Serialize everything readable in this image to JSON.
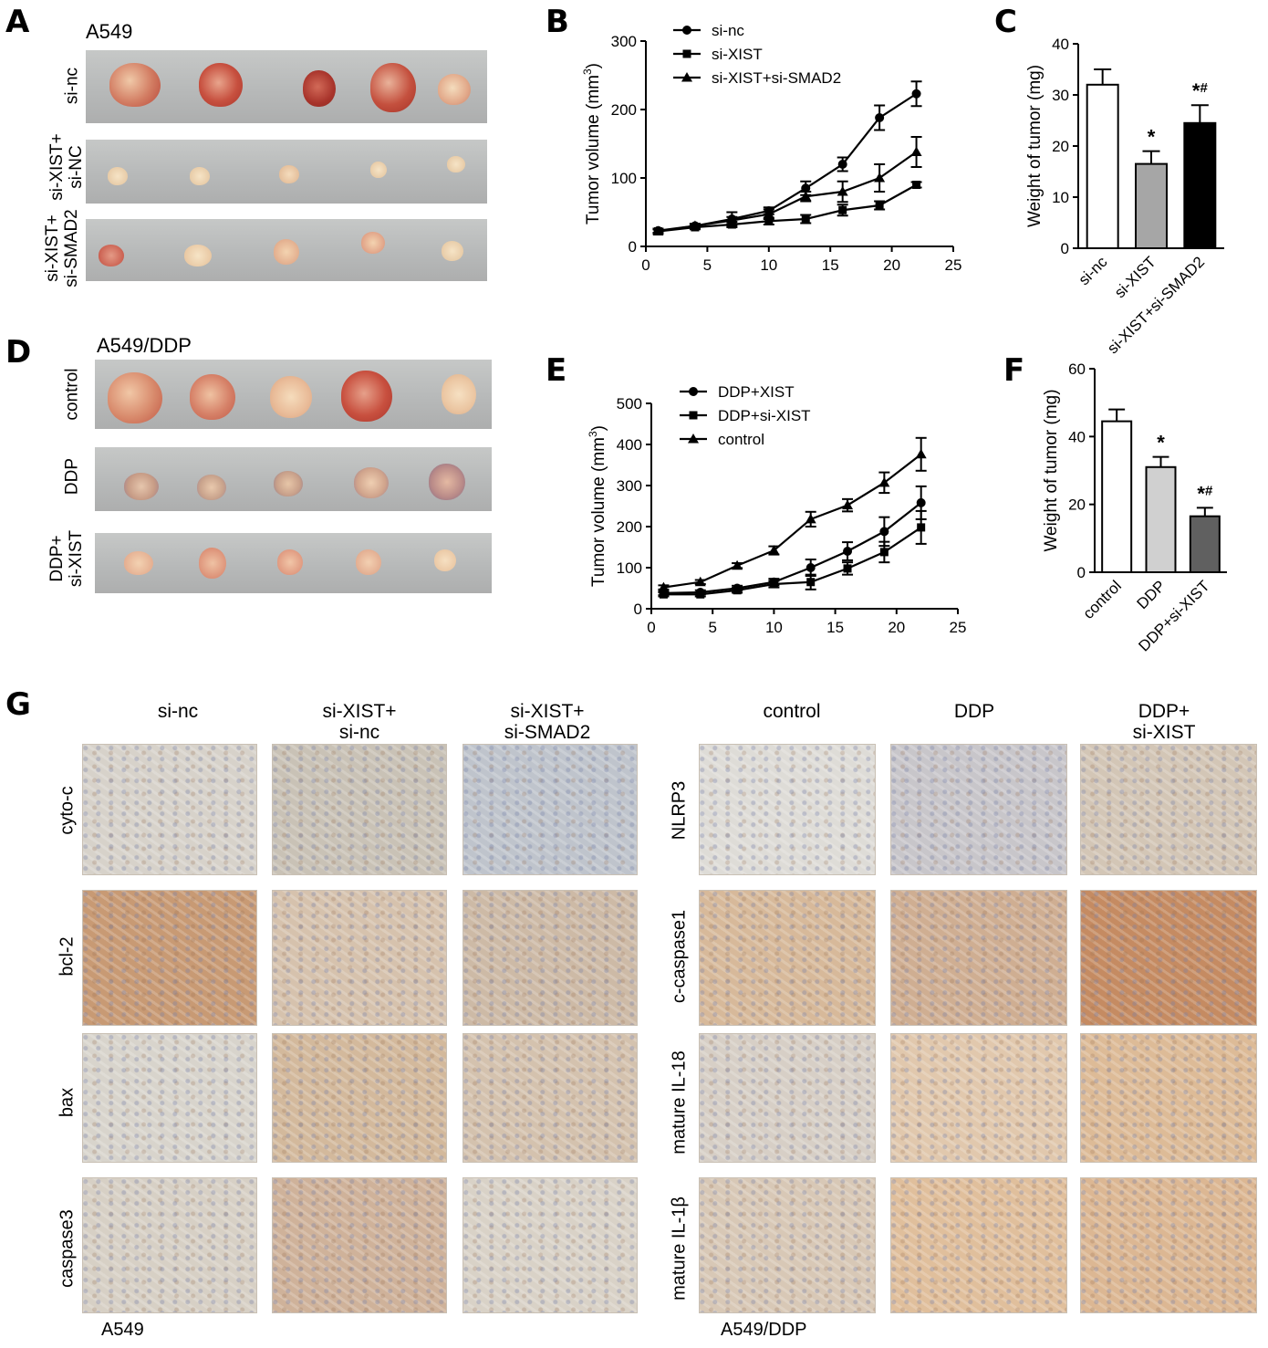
{
  "panels": {
    "A": {
      "letter": "A",
      "title": "A549",
      "rows": [
        "si-nc",
        "si-XIST+\nsi-NC",
        "si-XIST+\nsi-SMAD2"
      ]
    },
    "B": {
      "letter": "B"
    },
    "C": {
      "letter": "C"
    },
    "D": {
      "letter": "D",
      "title": "A549/DDP",
      "rows": [
        "control",
        "DDP",
        "DDP+\nsi-XIST"
      ]
    },
    "E": {
      "letter": "E"
    },
    "F": {
      "letter": "F"
    },
    "G": {
      "letter": "G",
      "left_columns": [
        "si-nc",
        "si-XIST+\nsi-nc",
        "si-XIST+\nsi-SMAD2"
      ],
      "right_columns": [
        "control",
        "DDP",
        "DDP+\nsi-XIST"
      ],
      "left_rows": [
        "cyto-c",
        "bcl-2",
        "bax",
        "caspase3"
      ],
      "right_rows": [
        "NLRP3",
        "c-caspase1",
        "mature  IL-18",
        "mature IL-1β"
      ],
      "left_footer": "A549",
      "right_footer": "A549/DDP"
    }
  },
  "chart_data": [
    {
      "id": "B",
      "type": "line",
      "ylabel": "Tumor volume (mm³)",
      "xlabel": "",
      "xlim": [
        0,
        25
      ],
      "ylim": [
        0,
        300
      ],
      "xticks": [
        0,
        5,
        10,
        15,
        20,
        25
      ],
      "yticks": [
        0,
        100,
        200,
        300
      ],
      "legend_position": "top-left",
      "series": [
        {
          "name": "si-nc",
          "marker": "circle",
          "x": [
            1,
            4,
            7,
            10,
            13,
            16,
            19,
            22
          ],
          "y": [
            23,
            30,
            40,
            52,
            85,
            120,
            188,
            223
          ],
          "err": [
            3,
            3,
            10,
            5,
            10,
            10,
            18,
            18
          ]
        },
        {
          "name": "si-XIST",
          "marker": "square",
          "x": [
            1,
            4,
            7,
            10,
            13,
            16,
            19,
            22
          ],
          "y": [
            22,
            28,
            32,
            37,
            40,
            53,
            60,
            90
          ],
          "err": [
            3,
            3,
            4,
            5,
            6,
            8,
            6,
            4
          ]
        },
        {
          "name": "si-XIST+si-SMAD2",
          "marker": "triangle",
          "x": [
            1,
            4,
            7,
            10,
            13,
            16,
            19,
            22
          ],
          "y": [
            22,
            30,
            38,
            47,
            73,
            80,
            100,
            138
          ],
          "err": [
            3,
            3,
            5,
            7,
            7,
            15,
            20,
            22
          ]
        }
      ]
    },
    {
      "id": "C",
      "type": "bar",
      "ylabel": "Weight of tumor (mg)",
      "ylim": [
        0,
        40
      ],
      "yticks": [
        0,
        10,
        20,
        30,
        40
      ],
      "categories": [
        "si-nc",
        "si-XIST",
        "si-XIST+si-SMAD2"
      ],
      "values": [
        32,
        16.5,
        24.5
      ],
      "errors": [
        3,
        2.5,
        3.5
      ],
      "annotations": [
        "",
        "*",
        "*#"
      ],
      "fills": [
        "#ffffff",
        "#a6a6a6",
        "#000000"
      ]
    },
    {
      "id": "E",
      "type": "line",
      "ylabel": "Tumor volume (mm³)",
      "xlabel": "",
      "xlim": [
        0,
        25
      ],
      "ylim": [
        0,
        500
      ],
      "xticks": [
        0,
        5,
        10,
        15,
        20,
        25
      ],
      "yticks": [
        0,
        100,
        200,
        300,
        400,
        500
      ],
      "legend_position": "top-left",
      "series": [
        {
          "name": "DDP+XIST",
          "marker": "circle",
          "x": [
            1,
            4,
            7,
            10,
            13,
            16,
            19,
            22
          ],
          "y": [
            38,
            40,
            50,
            65,
            100,
            140,
            188,
            258
          ],
          "err": [
            5,
            5,
            6,
            8,
            20,
            22,
            35,
            40
          ]
        },
        {
          "name": "DDP+si-XIST",
          "marker": "square",
          "x": [
            1,
            4,
            7,
            10,
            13,
            16,
            19,
            22
          ],
          "y": [
            35,
            35,
            45,
            60,
            65,
            98,
            138,
            198
          ],
          "err": [
            5,
            5,
            6,
            8,
            18,
            15,
            25,
            40
          ]
        },
        {
          "name": "control",
          "marker": "triangle",
          "x": [
            1,
            4,
            7,
            10,
            13,
            16,
            19,
            22
          ],
          "y": [
            52,
            65,
            105,
            142,
            218,
            252,
            307,
            376
          ],
          "err": [
            5,
            5,
            6,
            10,
            18,
            15,
            25,
            40
          ]
        }
      ]
    },
    {
      "id": "F",
      "type": "bar",
      "ylabel": "Weight of tumor (mg)",
      "ylim": [
        0,
        60
      ],
      "yticks": [
        0,
        20,
        40,
        60
      ],
      "categories": [
        "control",
        "DDP",
        "DDP+si-XIST"
      ],
      "values": [
        44.5,
        31,
        16.5
      ],
      "errors": [
        3.5,
        3,
        2.5
      ],
      "annotations": [
        "",
        "*",
        "*#"
      ],
      "fills": [
        "#ffffff",
        "#d0d0d0",
        "#606060"
      ]
    }
  ],
  "colors": {
    "tray": "#b9bbbb",
    "tumor_red": "#c65a4a",
    "tumor_pale": "#e9d1b0",
    "ihc_bg": "#e4ddd2",
    "ihc_brown": "#b9824f"
  }
}
